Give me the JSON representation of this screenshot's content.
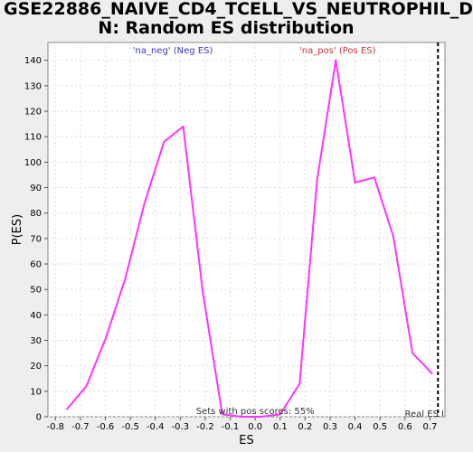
{
  "chart_data": {
    "type": "line",
    "title_line1": "GSE22886_NAIVE_CD4_TCELL_VS_NEUTROPHIL_D",
    "title_line2": "N: Random ES distribution",
    "xlabel": "ES",
    "ylabel": "P(ES)",
    "xlim": [
      -0.83,
      0.76
    ],
    "ylim": [
      0,
      147
    ],
    "xticks": [
      -0.8,
      -0.7,
      -0.6,
      -0.5,
      -0.4,
      -0.3,
      -0.2,
      -0.1,
      0.0,
      0.1,
      0.2,
      0.3,
      0.4,
      0.5,
      0.6,
      0.7
    ],
    "xtick_labels": [
      "-0.8",
      "-0.7",
      "-0.6",
      "-0.5",
      "-0.4",
      "-0.3",
      "-0.2",
      "-0.1",
      "0.0",
      "0.1",
      "0.2",
      "0.3",
      "0.4",
      "0.5",
      "0.6",
      "0.7"
    ],
    "yticks": [
      0,
      10,
      20,
      30,
      40,
      50,
      60,
      70,
      80,
      90,
      100,
      110,
      120,
      130,
      140
    ],
    "ytick_labels": [
      "0",
      "10",
      "20",
      "30",
      "40",
      "50",
      "60",
      "70",
      "80",
      "90",
      "100",
      "110",
      "120",
      "130",
      "140"
    ],
    "grid": true,
    "series": [
      {
        "color": "#ff33ff",
        "x": [
          -0.754,
          -0.676,
          -0.598,
          -0.521,
          -0.443,
          -0.365,
          -0.288,
          -0.21,
          -0.132,
          -0.055,
          0.023,
          0.101,
          0.178,
          0.248,
          0.323,
          0.4,
          0.477,
          0.553,
          0.63,
          0.708
        ],
        "y": [
          3,
          12,
          31,
          54,
          84,
          108,
          114,
          49,
          1,
          0,
          0,
          1,
          13,
          93,
          140,
          92,
          94,
          71,
          25,
          17
        ]
      }
    ],
    "annotations": {
      "neg_label": "'na_neg' (Neg ES)",
      "pos_label": "'na_pos' (Pos ES)",
      "sets_text": "Sets with pos scores: 55%",
      "real_es_text": "Real ES I",
      "real_es_x": 0.732
    },
    "colors": {
      "neg_label": "#3333cc",
      "pos_label": "#cc3333",
      "real_es_line": "#000000"
    }
  }
}
